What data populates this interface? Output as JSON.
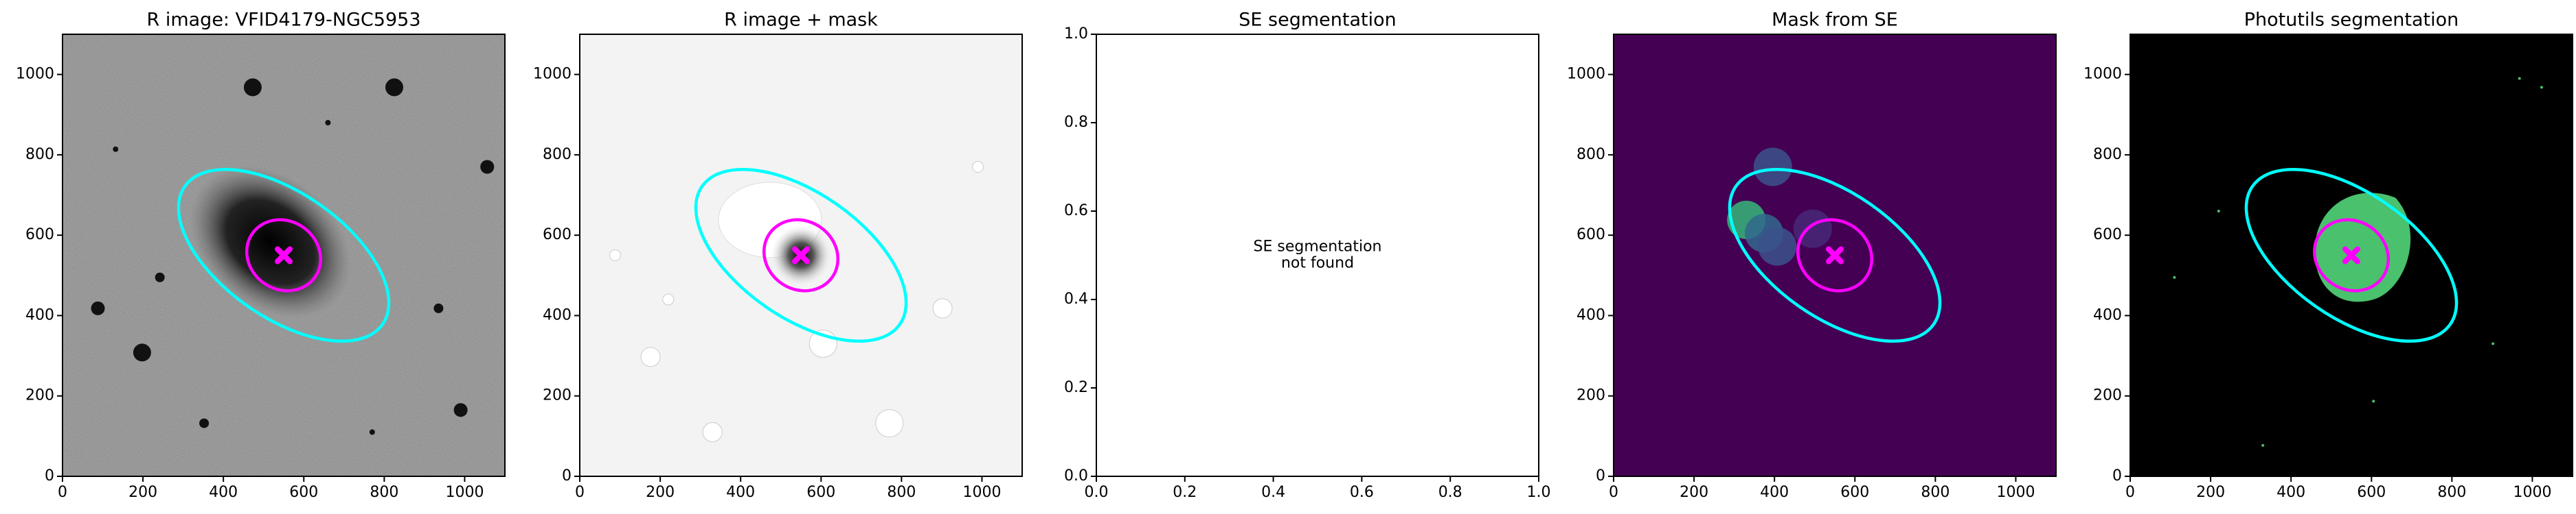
{
  "chart_data": [
    {
      "type": "image",
      "title": "R image: VFID4179-NGC5953",
      "background": "gray",
      "xlim": [
        0,
        1100
      ],
      "ylim": [
        0,
        1100
      ],
      "xticks": [
        0,
        200,
        400,
        600,
        800,
        1000
      ],
      "yticks": [
        0,
        200,
        400,
        600,
        800,
        1000
      ],
      "ellipses": [
        {
          "x": 550,
          "y": 550,
          "a": 300,
          "b": 155,
          "angle": -35,
          "color": "#00ffff"
        },
        {
          "x": 550,
          "y": 550,
          "a": 95,
          "b": 85,
          "angle": -35,
          "color": "#ff00ff"
        }
      ],
      "markers": [
        {
          "x": 550,
          "y": 550,
          "color": "#ff00ff"
        }
      ]
    },
    {
      "type": "image",
      "title": "R image + mask",
      "background": "masked",
      "xlim": [
        0,
        1100
      ],
      "ylim": [
        0,
        1100
      ],
      "xticks": [
        0,
        200,
        400,
        600,
        800,
        1000
      ],
      "yticks": [
        0,
        200,
        400,
        600,
        800,
        1000
      ],
      "ellipses": [
        {
          "x": 550,
          "y": 550,
          "a": 300,
          "b": 155,
          "angle": -35,
          "color": "#00ffff"
        },
        {
          "x": 550,
          "y": 550,
          "a": 95,
          "b": 85,
          "angle": -35,
          "color": "#ff00ff"
        }
      ],
      "markers": [
        {
          "x": 550,
          "y": 550,
          "color": "#ff00ff"
        }
      ]
    },
    {
      "type": "empty",
      "title": "SE segmentation",
      "xlim": [
        0,
        1
      ],
      "ylim": [
        0,
        1
      ],
      "xticks": [
        {
          "value": 0,
          "label": "0.0"
        },
        0.2,
        0.4,
        0.6,
        0.8,
        {
          "value": 1,
          "label": "1.0"
        }
      ],
      "yticks": [
        {
          "value": 0,
          "label": "0.0"
        },
        0.2,
        0.4,
        0.6,
        0.8,
        {
          "value": 1,
          "label": "1.0"
        }
      ],
      "annotation": [
        "SE segmentation",
        "not found"
      ]
    },
    {
      "type": "image",
      "title": "Mask from SE",
      "background": "semask",
      "xlim": [
        0,
        1100
      ],
      "ylim": [
        0,
        1100
      ],
      "xticks": [
        0,
        200,
        400,
        600,
        800,
        1000
      ],
      "yticks": [
        0,
        200,
        400,
        600,
        800,
        1000
      ],
      "ellipses": [
        {
          "x": 550,
          "y": 550,
          "a": 300,
          "b": 155,
          "angle": -35,
          "color": "#00ffff"
        },
        {
          "x": 550,
          "y": 550,
          "a": 95,
          "b": 85,
          "angle": -35,
          "color": "#ff00ff"
        }
      ],
      "markers": [
        {
          "x": 550,
          "y": 550,
          "color": "#ff00ff"
        }
      ]
    },
    {
      "type": "image",
      "title": "Photutils segmentation",
      "background": "photutils",
      "xlim": [
        0,
        1100
      ],
      "ylim": [
        0,
        1100
      ],
      "xticks": [
        0,
        200,
        400,
        600,
        800,
        1000
      ],
      "yticks": [
        0,
        200,
        400,
        600,
        800,
        1000
      ],
      "ellipses": [
        {
          "x": 550,
          "y": 550,
          "a": 300,
          "b": 155,
          "angle": -35,
          "color": "#00ffff"
        },
        {
          "x": 550,
          "y": 550,
          "a": 95,
          "b": 85,
          "angle": -35,
          "color": "#ff00ff"
        }
      ],
      "markers": [
        {
          "x": 550,
          "y": 550,
          "color": "#ff00ff"
        }
      ]
    }
  ]
}
